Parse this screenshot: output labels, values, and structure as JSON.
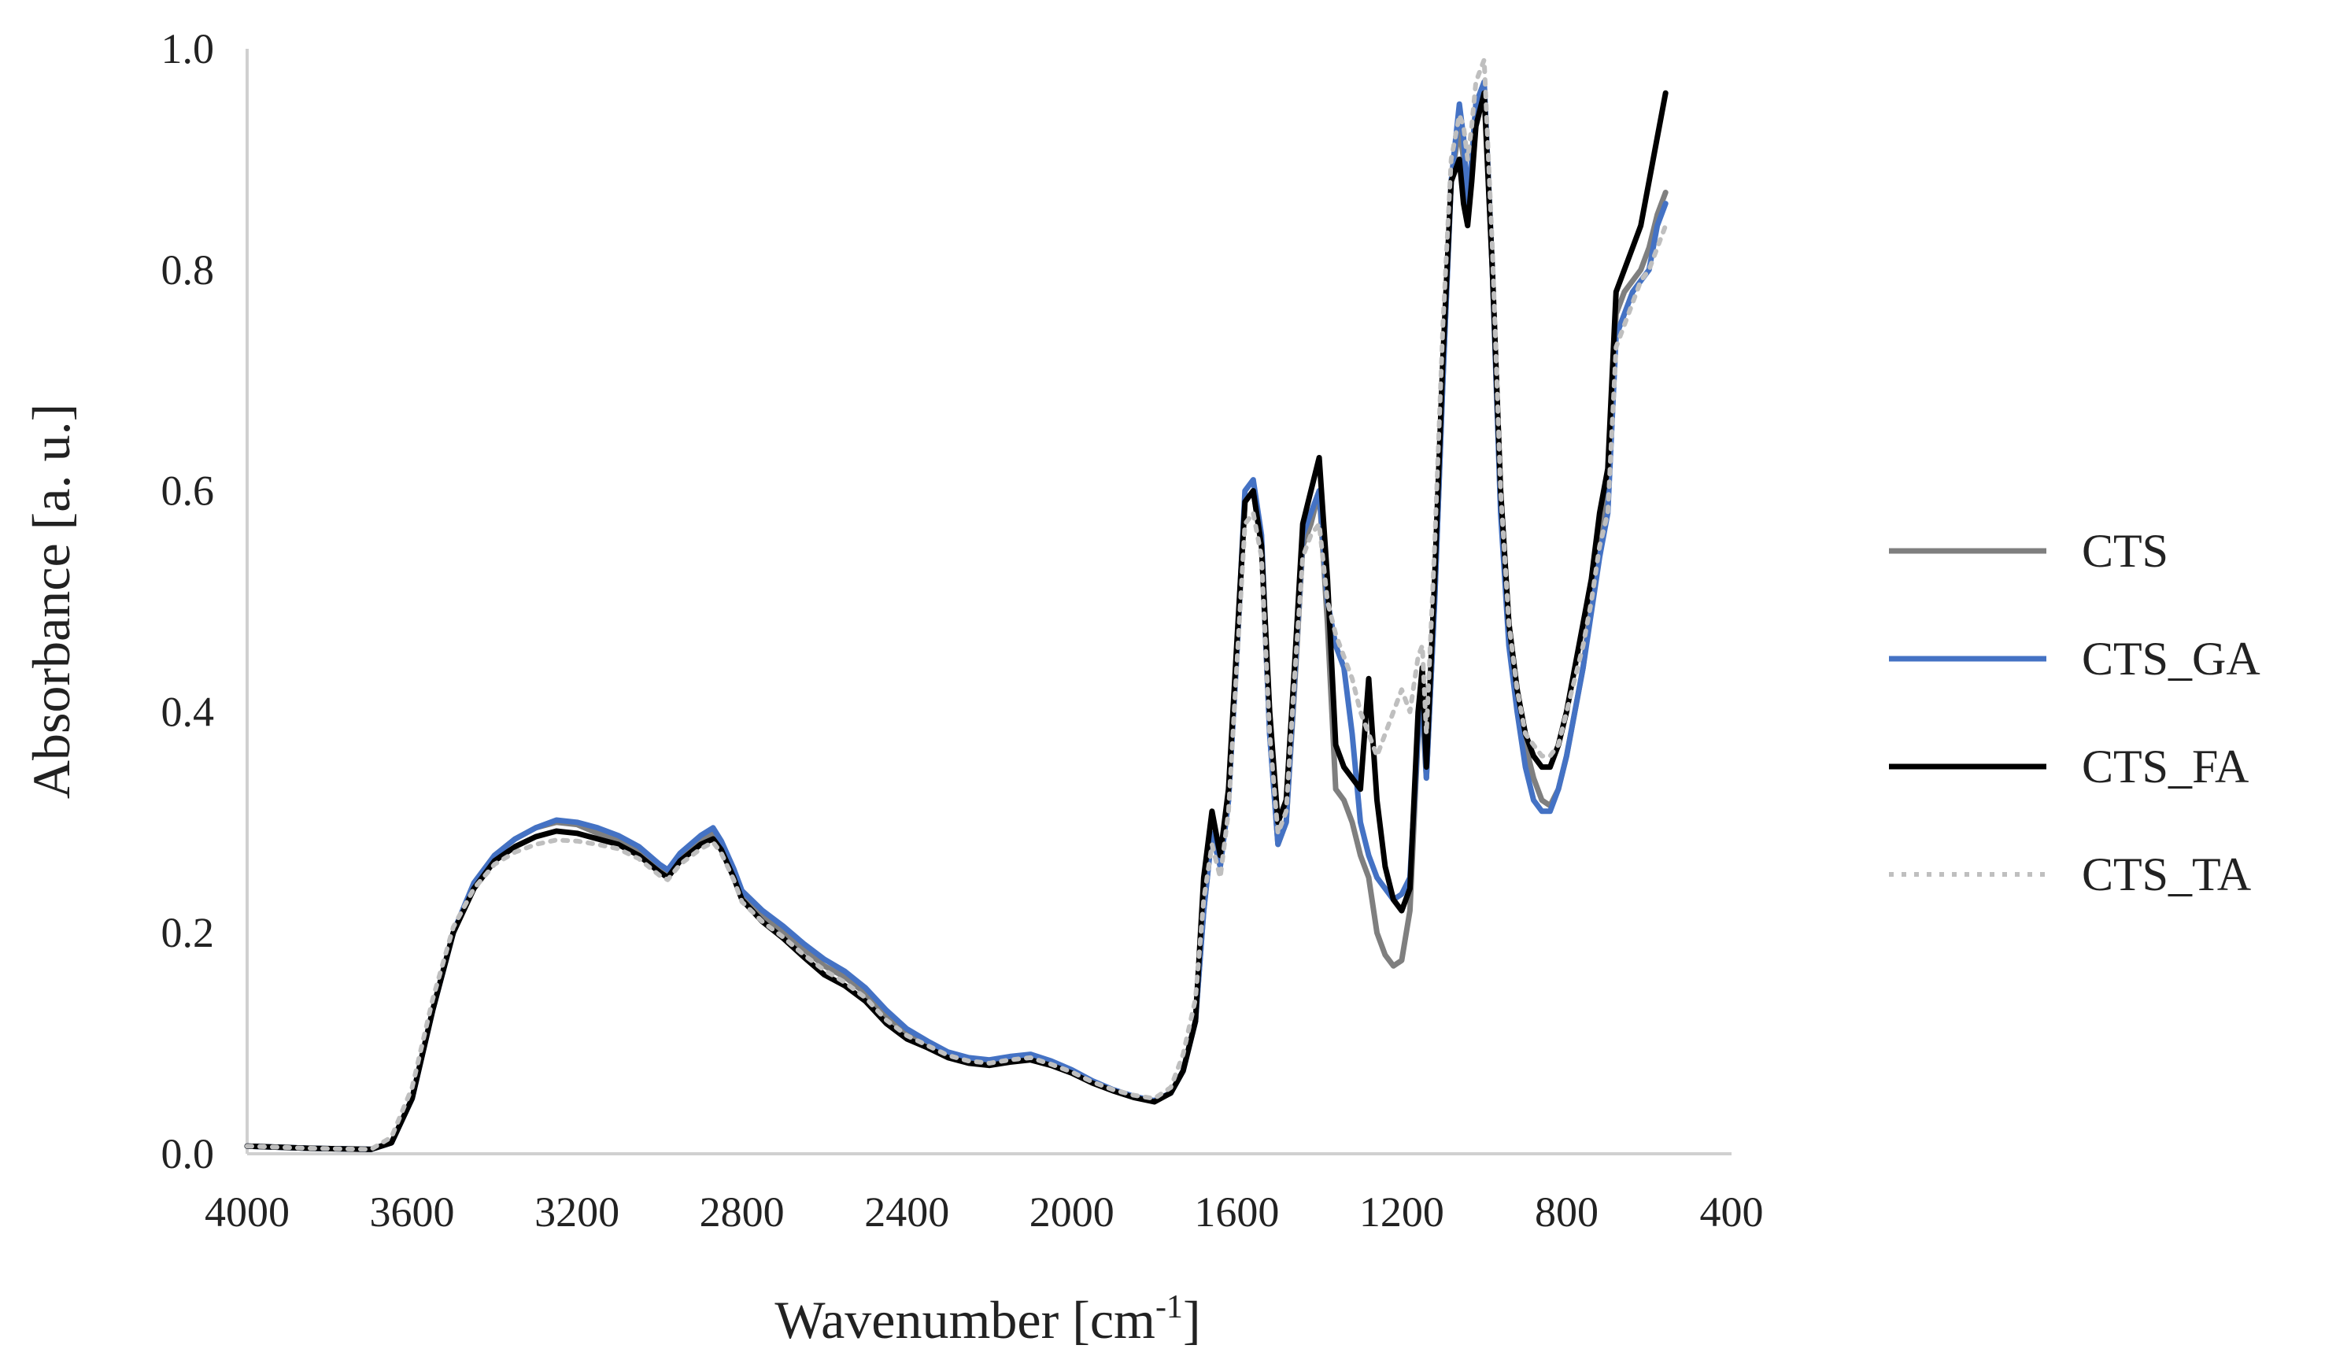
{
  "chart_data": {
    "type": "line",
    "title": "",
    "xlabel": "Wavenumber [cm",
    "xlabel_sup": "-1",
    "xlabel_suffix": "]",
    "ylabel": "Absorbance [a. u.]",
    "xlim": [
      4000,
      400
    ],
    "ylim": [
      0,
      1.0
    ],
    "x_reversed": true,
    "x_ticks": [
      4000,
      3600,
      3200,
      2800,
      2400,
      2000,
      1600,
      1200,
      800,
      400
    ],
    "y_ticks": [
      "0.0",
      "0.2",
      "0.4",
      "0.6",
      "0.8",
      "1.0"
    ],
    "y_tick_values": [
      0,
      0.2,
      0.4,
      0.6,
      0.8,
      1.0
    ],
    "grid": false,
    "legend_position": "right",
    "colors": {
      "CTS": "#7f7f7f",
      "CTS_GA": "#4472c4",
      "CTS_FA": "#000000",
      "CTS_TA": "#bfbfbf"
    },
    "x": [
      4000,
      3850,
      3700,
      3650,
      3600,
      3550,
      3500,
      3450,
      3400,
      3350,
      3300,
      3250,
      3200,
      3150,
      3100,
      3050,
      3000,
      2980,
      2950,
      2900,
      2870,
      2850,
      2820,
      2800,
      2750,
      2700,
      2650,
      2600,
      2550,
      2500,
      2450,
      2400,
      2350,
      2300,
      2250,
      2200,
      2150,
      2100,
      2050,
      2000,
      1950,
      1900,
      1850,
      1800,
      1760,
      1730,
      1700,
      1680,
      1660,
      1640,
      1620,
      1600,
      1580,
      1560,
      1540,
      1520,
      1500,
      1480,
      1460,
      1440,
      1420,
      1400,
      1380,
      1360,
      1340,
      1320,
      1300,
      1280,
      1260,
      1240,
      1220,
      1200,
      1180,
      1160,
      1150,
      1140,
      1120,
      1100,
      1080,
      1060,
      1050,
      1040,
      1030,
      1020,
      1000,
      980,
      960,
      940,
      920,
      900,
      880,
      860,
      840,
      820,
      800,
      780,
      760,
      740,
      720,
      700,
      680,
      660,
      640,
      620,
      600,
      580,
      560
    ],
    "series": [
      {
        "name": "CTS",
        "style": "solid",
        "values": [
          0.007,
          0.005,
          0.004,
          0.01,
          0.05,
          0.13,
          0.2,
          0.245,
          0.27,
          0.285,
          0.295,
          0.3,
          0.298,
          0.29,
          0.285,
          0.275,
          0.26,
          0.255,
          0.27,
          0.285,
          0.29,
          0.28,
          0.255,
          0.235,
          0.215,
          0.2,
          0.185,
          0.17,
          0.16,
          0.145,
          0.125,
          0.11,
          0.1,
          0.09,
          0.085,
          0.083,
          0.086,
          0.088,
          0.082,
          0.075,
          0.065,
          0.058,
          0.052,
          0.048,
          0.055,
          0.075,
          0.12,
          0.22,
          0.29,
          0.26,
          0.32,
          0.45,
          0.59,
          0.6,
          0.55,
          0.38,
          0.28,
          0.3,
          0.42,
          0.55,
          0.57,
          0.6,
          0.48,
          0.33,
          0.32,
          0.3,
          0.27,
          0.25,
          0.2,
          0.18,
          0.17,
          0.175,
          0.22,
          0.38,
          0.4,
          0.34,
          0.5,
          0.7,
          0.88,
          0.93,
          0.9,
          0.85,
          0.9,
          0.95,
          0.97,
          0.8,
          0.6,
          0.48,
          0.42,
          0.37,
          0.34,
          0.32,
          0.315,
          0.33,
          0.36,
          0.4,
          0.44,
          0.5,
          0.56,
          0.6,
          0.76,
          0.78,
          0.79,
          0.8,
          0.82,
          0.85,
          0.87
        ]
      },
      {
        "name": "CTS_GA",
        "style": "solid",
        "values": [
          0.007,
          0.005,
          0.004,
          0.01,
          0.05,
          0.13,
          0.2,
          0.245,
          0.27,
          0.285,
          0.295,
          0.302,
          0.3,
          0.295,
          0.288,
          0.278,
          0.262,
          0.257,
          0.272,
          0.288,
          0.295,
          0.283,
          0.258,
          0.238,
          0.22,
          0.206,
          0.19,
          0.176,
          0.165,
          0.15,
          0.13,
          0.113,
          0.102,
          0.092,
          0.087,
          0.085,
          0.088,
          0.09,
          0.084,
          0.076,
          0.066,
          0.058,
          0.052,
          0.048,
          0.055,
          0.075,
          0.12,
          0.22,
          0.29,
          0.26,
          0.32,
          0.45,
          0.6,
          0.61,
          0.56,
          0.38,
          0.28,
          0.3,
          0.43,
          0.56,
          0.58,
          0.6,
          0.5,
          0.46,
          0.44,
          0.38,
          0.3,
          0.27,
          0.25,
          0.24,
          0.23,
          0.235,
          0.25,
          0.38,
          0.42,
          0.34,
          0.5,
          0.7,
          0.88,
          0.95,
          0.92,
          0.86,
          0.9,
          0.95,
          0.97,
          0.8,
          0.58,
          0.46,
          0.4,
          0.35,
          0.32,
          0.31,
          0.31,
          0.33,
          0.36,
          0.4,
          0.44,
          0.49,
          0.54,
          0.58,
          0.74,
          0.76,
          0.78,
          0.79,
          0.8,
          0.84,
          0.86
        ]
      },
      {
        "name": "CTS_FA",
        "style": "solid",
        "values": [
          0.007,
          0.005,
          0.004,
          0.01,
          0.05,
          0.13,
          0.2,
          0.24,
          0.265,
          0.278,
          0.287,
          0.292,
          0.29,
          0.285,
          0.28,
          0.27,
          0.255,
          0.25,
          0.265,
          0.28,
          0.285,
          0.275,
          0.25,
          0.23,
          0.21,
          0.195,
          0.178,
          0.162,
          0.152,
          0.138,
          0.118,
          0.104,
          0.096,
          0.087,
          0.082,
          0.08,
          0.083,
          0.085,
          0.08,
          0.073,
          0.064,
          0.057,
          0.051,
          0.047,
          0.055,
          0.075,
          0.12,
          0.25,
          0.31,
          0.27,
          0.33,
          0.46,
          0.59,
          0.6,
          0.55,
          0.4,
          0.3,
          0.32,
          0.44,
          0.57,
          0.6,
          0.63,
          0.52,
          0.37,
          0.35,
          0.34,
          0.33,
          0.43,
          0.32,
          0.26,
          0.23,
          0.22,
          0.24,
          0.4,
          0.44,
          0.35,
          0.52,
          0.72,
          0.88,
          0.9,
          0.86,
          0.84,
          0.88,
          0.93,
          0.96,
          0.8,
          0.6,
          0.48,
          0.42,
          0.38,
          0.36,
          0.35,
          0.35,
          0.37,
          0.4,
          0.44,
          0.48,
          0.52,
          0.58,
          0.62,
          0.78,
          0.8,
          0.82,
          0.84,
          0.88,
          0.92,
          0.96
        ]
      },
      {
        "name": "CTS_TA",
        "style": "dotted",
        "values": [
          0.007,
          0.005,
          0.004,
          0.015,
          0.06,
          0.14,
          0.205,
          0.24,
          0.262,
          0.273,
          0.28,
          0.284,
          0.283,
          0.28,
          0.276,
          0.267,
          0.252,
          0.248,
          0.262,
          0.276,
          0.282,
          0.272,
          0.248,
          0.228,
          0.21,
          0.196,
          0.18,
          0.166,
          0.155,
          0.141,
          0.121,
          0.107,
          0.098,
          0.089,
          0.084,
          0.082,
          0.085,
          0.087,
          0.081,
          0.074,
          0.065,
          0.058,
          0.053,
          0.05,
          0.06,
          0.09,
          0.14,
          0.23,
          0.28,
          0.25,
          0.31,
          0.44,
          0.57,
          0.58,
          0.54,
          0.38,
          0.29,
          0.31,
          0.43,
          0.54,
          0.56,
          0.57,
          0.5,
          0.47,
          0.45,
          0.43,
          0.4,
          0.38,
          0.36,
          0.38,
          0.4,
          0.42,
          0.4,
          0.45,
          0.46,
          0.38,
          0.55,
          0.75,
          0.9,
          0.94,
          0.93,
          0.9,
          0.93,
          0.97,
          0.99,
          0.82,
          0.6,
          0.48,
          0.42,
          0.38,
          0.37,
          0.36,
          0.36,
          0.37,
          0.4,
          0.43,
          0.46,
          0.5,
          0.55,
          0.58,
          0.73,
          0.75,
          0.77,
          0.79,
          0.8,
          0.82,
          0.84
        ]
      }
    ]
  }
}
